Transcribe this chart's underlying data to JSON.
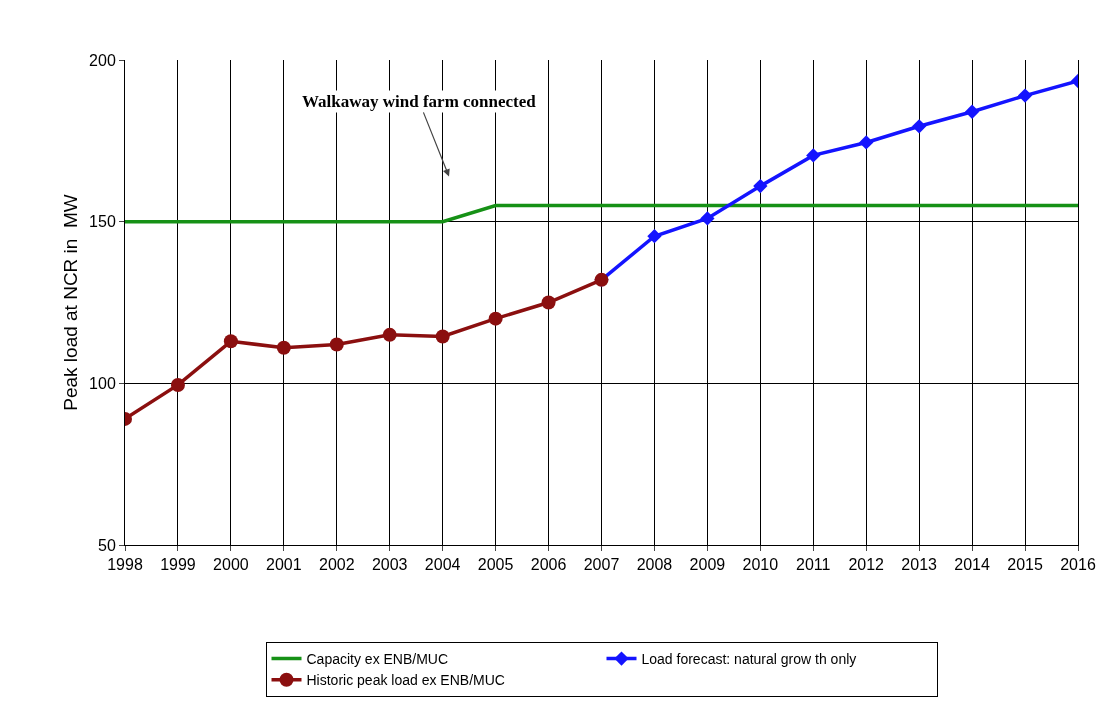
{
  "chart_data": {
    "type": "line",
    "ylabel": "Peak load at NCR in  MW",
    "categories": [
      "1998",
      "1999",
      "2000",
      "2001",
      "2002",
      "2003",
      "2004",
      "2005",
      "2006",
      "2007",
      "2008",
      "2009",
      "2010",
      "2011",
      "2012",
      "2013",
      "2014",
      "2015",
      "2016"
    ],
    "series": [
      {
        "name": "Capacity ex ENB/MUC",
        "color": "#169116",
        "marker": "none",
        "values": [
          150,
          150,
          150,
          150,
          150,
          150,
          150,
          155,
          155,
          155,
          155,
          155,
          155,
          155,
          155,
          155,
          155,
          155,
          155
        ]
      },
      {
        "name": "Load forecast: natural grow th only",
        "color": "#1414ff",
        "marker": "diamond",
        "values": [
          null,
          null,
          null,
          null,
          null,
          null,
          null,
          null,
          null,
          132,
          145.5,
          151,
          161,
          170.5,
          174.5,
          179.5,
          184,
          189,
          193.5
        ]
      },
      {
        "name": "Historic peak load ex ENB/MUC",
        "color": "#8b0f0f",
        "marker": "circle",
        "values": [
          89,
          99.5,
          113,
          111,
          112,
          115,
          114.5,
          120,
          125,
          132,
          null,
          null,
          null,
          null,
          null,
          null,
          null,
          null,
          null
        ]
      }
    ],
    "annotations": [
      "Walkaway wind farm connected"
    ],
    "ylim": [
      50,
      200
    ],
    "yticks": [
      50,
      100,
      150,
      200
    ],
    "grid": true,
    "legend": "bottom",
    "line_style": "solid"
  }
}
